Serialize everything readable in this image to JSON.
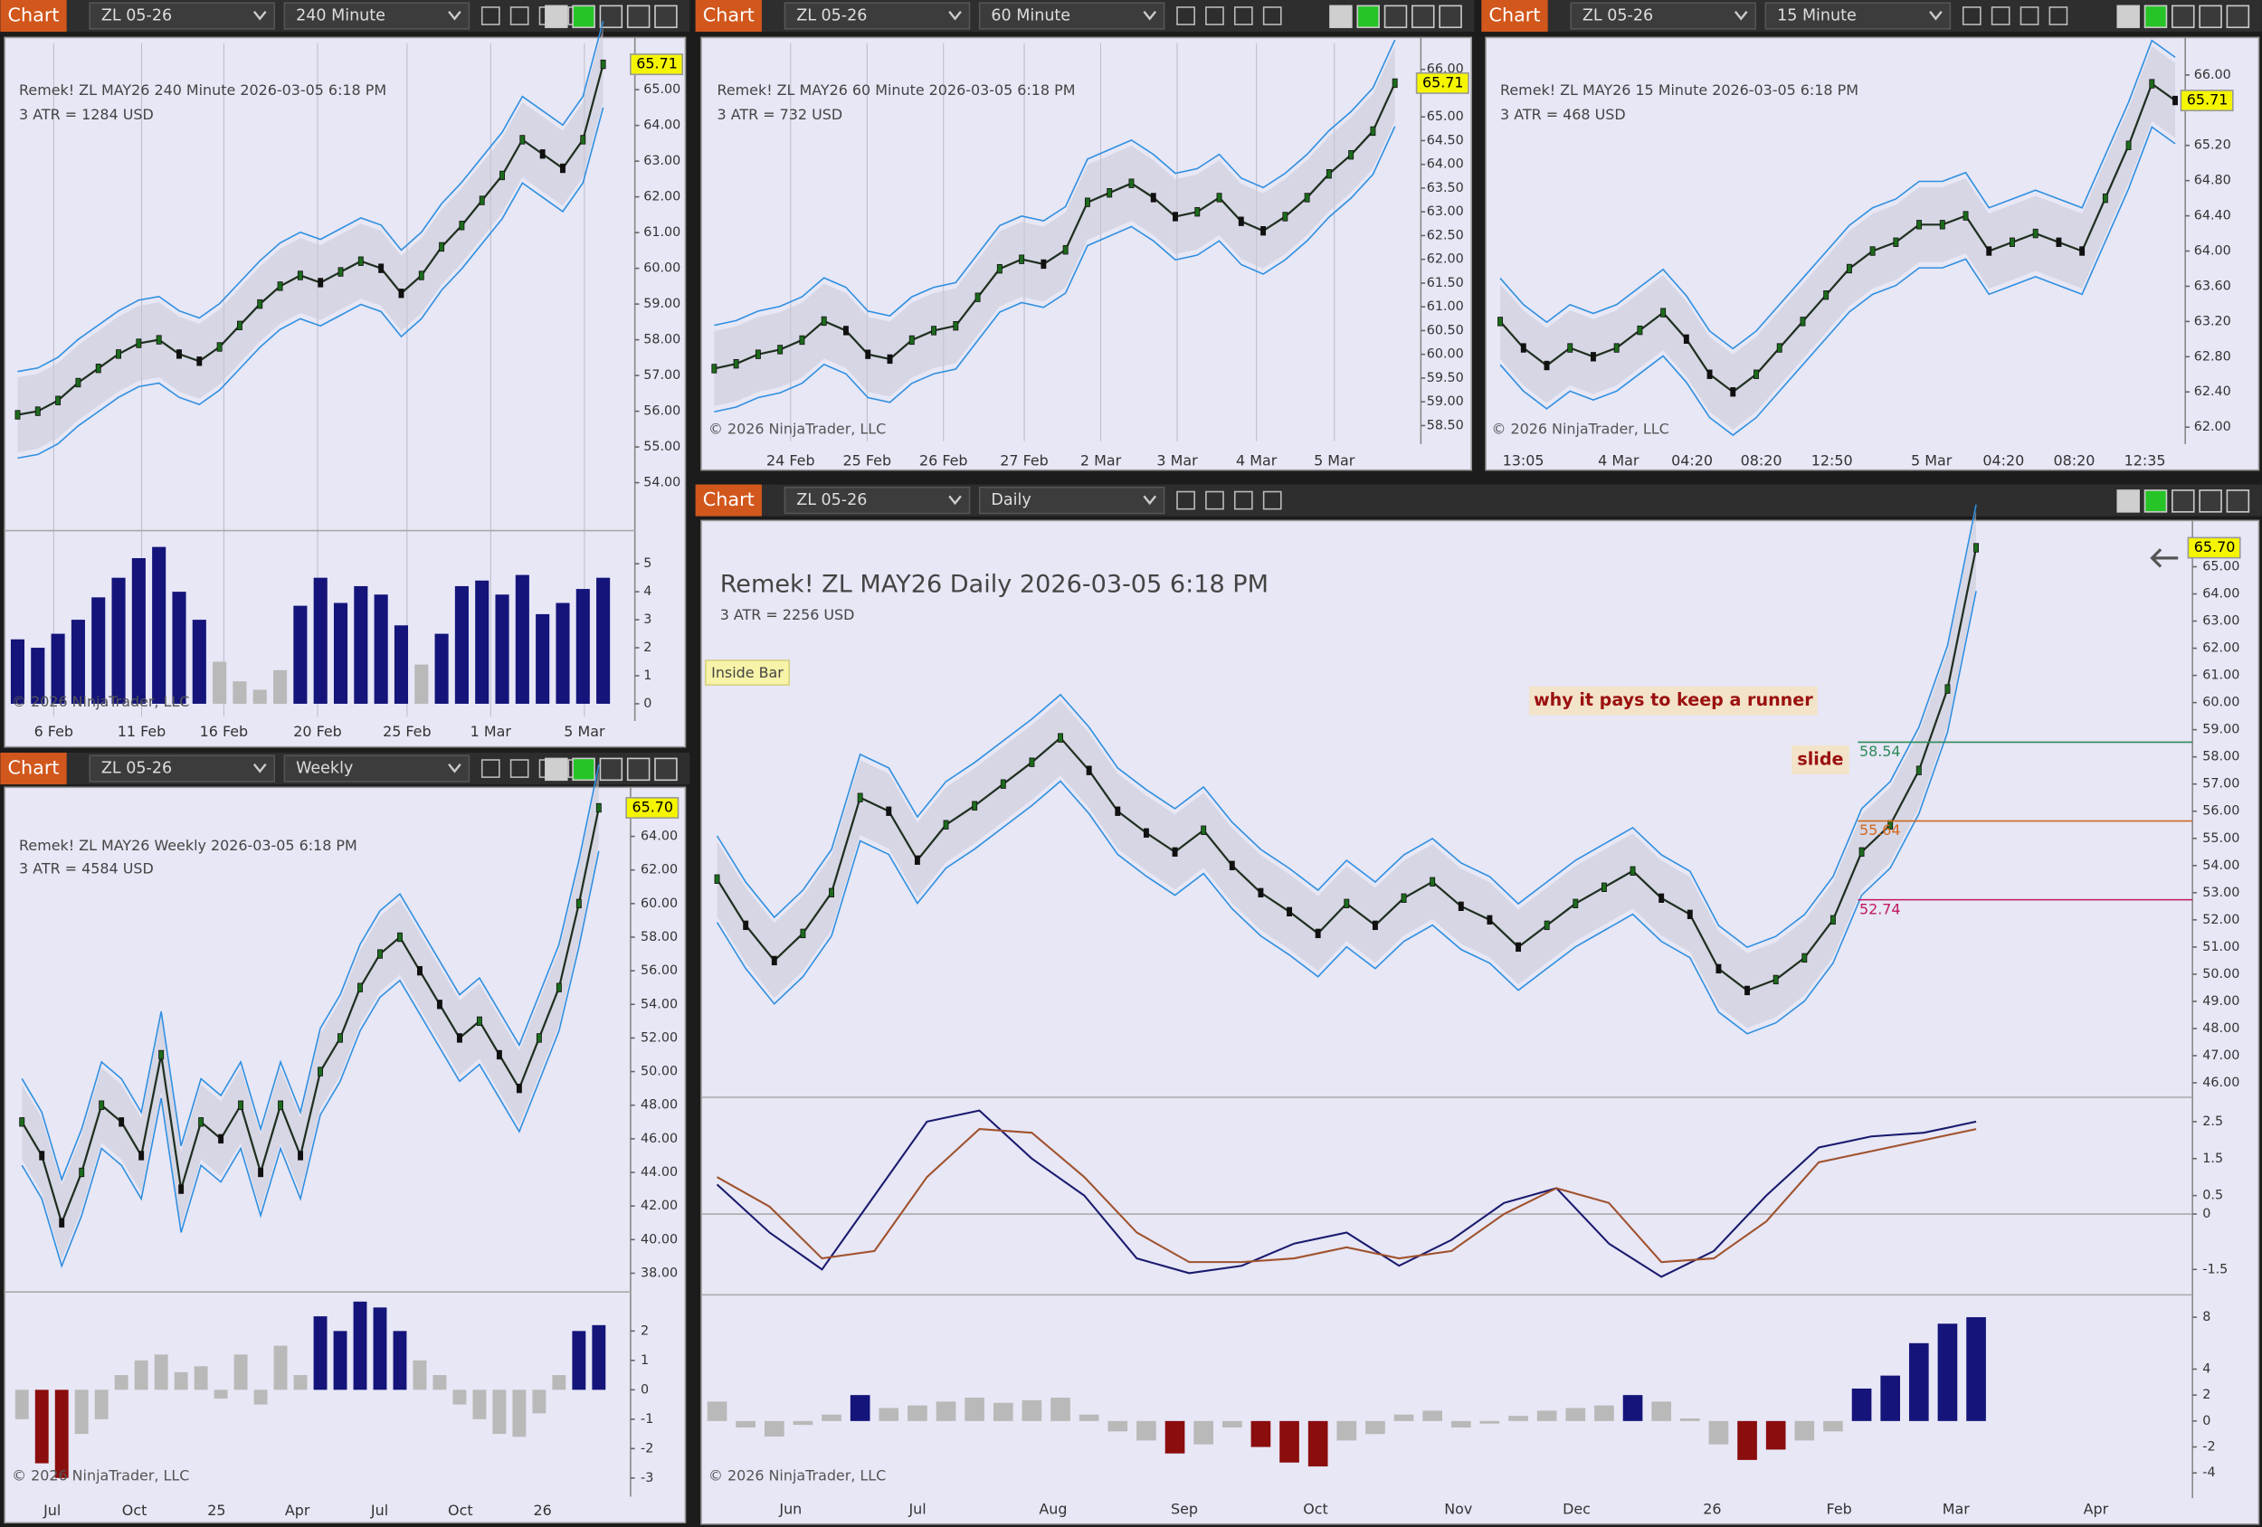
{
  "panels": [
    {
      "toolbar": {
        "tab": "Chart",
        "instrument": "ZL 05-26",
        "interval": "240 Minute"
      },
      "title": "Remek!  ZL MAY26  240 Minute  2026-03-05 6:18 PM",
      "atr": "3 ATR = 1284 USD",
      "last": "65.71",
      "ylim": [
        52.9,
        66.3
      ],
      "price_ticks": [
        "65.00",
        "64.00",
        "63.00",
        "62.00",
        "61.00",
        "60.00",
        "59.00",
        "58.00",
        "57.00",
        "56.00",
        "55.00",
        "54.00"
      ],
      "x_labels": [
        "6 Feb",
        "11 Feb",
        "16 Feb",
        "20 Feb",
        "25 Feb",
        "1 Mar",
        "5 Mar"
      ],
      "closes": [
        55.9,
        56.0,
        56.3,
        56.8,
        57.2,
        57.6,
        57.9,
        58.0,
        57.6,
        57.4,
        57.8,
        58.4,
        59.0,
        59.5,
        59.8,
        59.6,
        59.9,
        60.2,
        60.0,
        59.3,
        59.8,
        60.6,
        61.2,
        61.9,
        62.6,
        63.6,
        63.2,
        62.8,
        63.6,
        65.71
      ],
      "lower": {
        "lim": [
          -0.46,
          6.08
        ],
        "ticks": [
          "5",
          "4",
          "3",
          "2",
          "1",
          "0"
        ],
        "values": [
          2.3,
          2.0,
          2.5,
          3.0,
          3.8,
          4.5,
          5.2,
          5.6,
          4.0,
          3.0,
          1.5,
          0.8,
          0.5,
          1.2,
          3.5,
          4.5,
          3.6,
          4.2,
          3.9,
          2.8,
          1.4,
          2.5,
          4.2,
          4.4,
          3.9,
          4.6,
          3.2,
          3.6,
          4.1,
          4.5
        ]
      },
      "copyright": "© 2026 NinjaTrader, LLC"
    },
    {
      "toolbar": {
        "tab": "Chart",
        "instrument": "ZL 05-26",
        "interval": "60 Minute"
      },
      "title": "Remek!  ZL MAY26  60 Minute  2026-03-05 6:18 PM",
      "atr": "3 ATR = 732 USD",
      "last": "65.71",
      "ylim": [
        58.17,
        66.55
      ],
      "price_ticks": [
        "66.00",
        "65.00",
        "64.50",
        "64.00",
        "63.50",
        "63.00",
        "62.50",
        "62.00",
        "61.50",
        "61.00",
        "60.50",
        "60.00",
        "59.50",
        "59.00",
        "58.50"
      ],
      "x_labels": [
        "24 Feb",
        "25 Feb",
        "26 Feb",
        "27 Feb",
        "2 Mar",
        "3 Mar",
        "4 Mar",
        "5 Mar"
      ],
      "closes": [
        59.7,
        59.8,
        60.0,
        60.1,
        60.3,
        60.7,
        60.5,
        60.0,
        59.9,
        60.3,
        60.5,
        60.6,
        61.2,
        61.8,
        62.0,
        61.9,
        62.2,
        63.2,
        63.4,
        63.6,
        63.3,
        62.9,
        63.0,
        63.3,
        62.8,
        62.6,
        62.9,
        63.3,
        63.8,
        64.2,
        64.7,
        65.71
      ],
      "copyright": "© 2026 NinjaTrader, LLC"
    },
    {
      "toolbar": {
        "tab": "Chart",
        "instrument": "ZL 05-26",
        "interval": "15 Minute"
      },
      "title": "Remek!  ZL MAY26  15 Minute  2026-03-05 6:18 PM",
      "atr": "3 ATR = 468 USD",
      "last": "65.71",
      "ylim": [
        61.84,
        66.36
      ],
      "price_ticks": [
        "66.00",
        "65.20",
        "64.80",
        "64.40",
        "64.00",
        "63.60",
        "63.20",
        "62.80",
        "62.40",
        "62.00"
      ],
      "x_labels": [
        "13:05",
        "4 Mar",
        "04:20",
        "08:20",
        "12:50",
        "5 Mar",
        "04:20",
        "08:20",
        "12:35"
      ],
      "closes": [
        63.2,
        62.9,
        62.7,
        62.9,
        62.8,
        62.9,
        63.1,
        63.3,
        63.0,
        62.6,
        62.4,
        62.6,
        62.9,
        63.2,
        63.5,
        63.8,
        64.0,
        64.1,
        64.3,
        64.3,
        64.4,
        64.0,
        64.1,
        64.2,
        64.1,
        64.0,
        64.6,
        65.2,
        65.9,
        65.71
      ],
      "copyright": "© 2026 NinjaTrader, LLC"
    },
    {
      "toolbar": {
        "tab": "Chart",
        "instrument": "ZL 05-26",
        "interval": "Weekly"
      },
      "title": "Remek!  ZL MAY26  Weekly  2026-03-05 6:18 PM",
      "atr": "3 ATR = 4584 USD",
      "last": "65.70",
      "ylim": [
        37.14,
        66.75
      ],
      "price_ticks": [
        "64.00",
        "62.00",
        "60.00",
        "58.00",
        "56.00",
        "54.00",
        "52.00",
        "50.00",
        "48.00",
        "46.00",
        "44.00",
        "42.00",
        "40.00",
        "38.00"
      ],
      "x_labels": [
        "Jul",
        "Oct",
        "25",
        "Apr",
        "Jul",
        "Oct",
        "26"
      ],
      "closes": [
        47,
        45,
        41,
        44,
        48,
        47,
        45,
        51,
        43,
        47,
        46,
        48,
        44,
        48,
        45,
        50,
        52,
        55,
        57,
        58,
        56,
        54,
        52,
        53,
        51,
        49,
        52,
        55,
        60,
        65.7
      ],
      "lower": {
        "lim": [
          -3.49,
          3.23
        ],
        "ticks": [
          "2",
          "1",
          "0",
          "-1",
          "-2",
          "-3"
        ],
        "values": [
          -1,
          -2.5,
          -3,
          -1.5,
          -1,
          0.5,
          1,
          1.2,
          0.6,
          0.8,
          -0.3,
          1.2,
          -0.5,
          1.5,
          0.5,
          2.5,
          2.0,
          3.0,
          2.8,
          2.0,
          1.0,
          0.5,
          -0.5,
          -1.0,
          -1.5,
          -1.6,
          -0.8,
          0.5,
          2.0,
          2.2
        ]
      },
      "copyright": "© 2026 NinjaTrader, LLC"
    },
    {
      "toolbar": {
        "tab": "Chart",
        "instrument": "ZL 05-26",
        "interval": "Daily"
      },
      "title": "Remek!  ZL MAY26  Daily  2026-03-05 6:18 PM",
      "atr": "3 ATR = 2256 USD",
      "last": "65.70",
      "ylim": [
        45.52,
        66.33
      ],
      "price_ticks": [
        "65.00",
        "64.00",
        "63.00",
        "62.00",
        "61.00",
        "60.00",
        "59.00",
        "58.00",
        "57.00",
        "56.00",
        "55.00",
        "54.00",
        "53.00",
        "52.00",
        "51.00",
        "50.00",
        "49.00",
        "48.00",
        "47.00",
        "46.00"
      ],
      "x_labels": [
        "Jun",
        "Jul",
        "Aug",
        "Sep",
        "Oct",
        "Nov",
        "Dec",
        "26",
        "Feb",
        "Mar",
        "Apr"
      ],
      "closes": [
        53.5,
        51.8,
        50.5,
        51.5,
        53.0,
        56.5,
        56.0,
        54.2,
        55.5,
        56.2,
        57.0,
        57.8,
        58.7,
        57.5,
        56.0,
        55.2,
        54.5,
        55.3,
        54.0,
        53.0,
        52.3,
        51.5,
        52.6,
        51.8,
        52.8,
        53.4,
        52.5,
        52.0,
        51.0,
        51.8,
        52.6,
        53.2,
        53.8,
        52.8,
        52.2,
        50.2,
        49.4,
        49.8,
        50.6,
        52.0,
        54.5,
        55.5,
        57.5,
        60.5,
        65.7
      ],
      "osc": {
        "lim": [
          -2.07,
          3.12
        ],
        "ticks": [
          "2.5",
          "1.5",
          "0.5",
          "0",
          "-1.5"
        ],
        "series": [
          {
            "color": "#1a1a6e",
            "values": [
              0.8,
              -0.5,
              -1.5,
              0.5,
              2.5,
              2.8,
              1.5,
              0.5,
              -1.2,
              -1.6,
              -1.4,
              -0.8,
              -0.5,
              -1.4,
              -0.7,
              0.3,
              0.7,
              -0.8,
              -1.7,
              -1.0,
              0.5,
              1.8,
              2.1,
              2.2,
              2.5
            ]
          },
          {
            "color": "#a0522d",
            "values": [
              1.0,
              0.2,
              -1.2,
              -1.0,
              1.0,
              2.3,
              2.2,
              1.0,
              -0.5,
              -1.3,
              -1.3,
              -1.2,
              -0.9,
              -1.2,
              -1.0,
              0.0,
              0.7,
              0.3,
              -1.3,
              -1.2,
              -0.2,
              1.4,
              1.7,
              2.0,
              2.3
            ]
          }
        ]
      },
      "lower": {
        "lim": [
          -5.5,
          9.5
        ],
        "ticks": [
          "8",
          "4",
          "2",
          "0",
          "-2",
          "-4"
        ],
        "values": [
          1.5,
          -0.5,
          -1.2,
          -0.3,
          0.5,
          2.0,
          1.0,
          1.2,
          1.5,
          1.8,
          1.4,
          1.6,
          1.8,
          0.5,
          -0.8,
          -1.5,
          -2.5,
          -1.8,
          -0.5,
          -2.0,
          -3.2,
          -3.5,
          -1.5,
          -1.0,
          0.5,
          0.8,
          -0.5,
          -0.2,
          0.4,
          0.8,
          1.0,
          1.2,
          2.0,
          1.5,
          0.2,
          -1.8,
          -3.0,
          -2.2,
          -1.5,
          -0.8,
          2.5,
          3.5,
          6.0,
          7.5,
          8.0
        ]
      },
      "copyright": "© 2026 NinjaTrader, LLC",
      "annotations": {
        "inside_bar": "Inside Bar",
        "runner": "why it pays to keep a runner",
        "slide": "slide",
        "levels": [
          {
            "label": "58.54",
            "color": "#2e8b57"
          },
          {
            "label": "55.64",
            "color": "#d2691e"
          },
          {
            "label": "52.74",
            "color": "#c2185b"
          }
        ]
      }
    }
  ]
}
